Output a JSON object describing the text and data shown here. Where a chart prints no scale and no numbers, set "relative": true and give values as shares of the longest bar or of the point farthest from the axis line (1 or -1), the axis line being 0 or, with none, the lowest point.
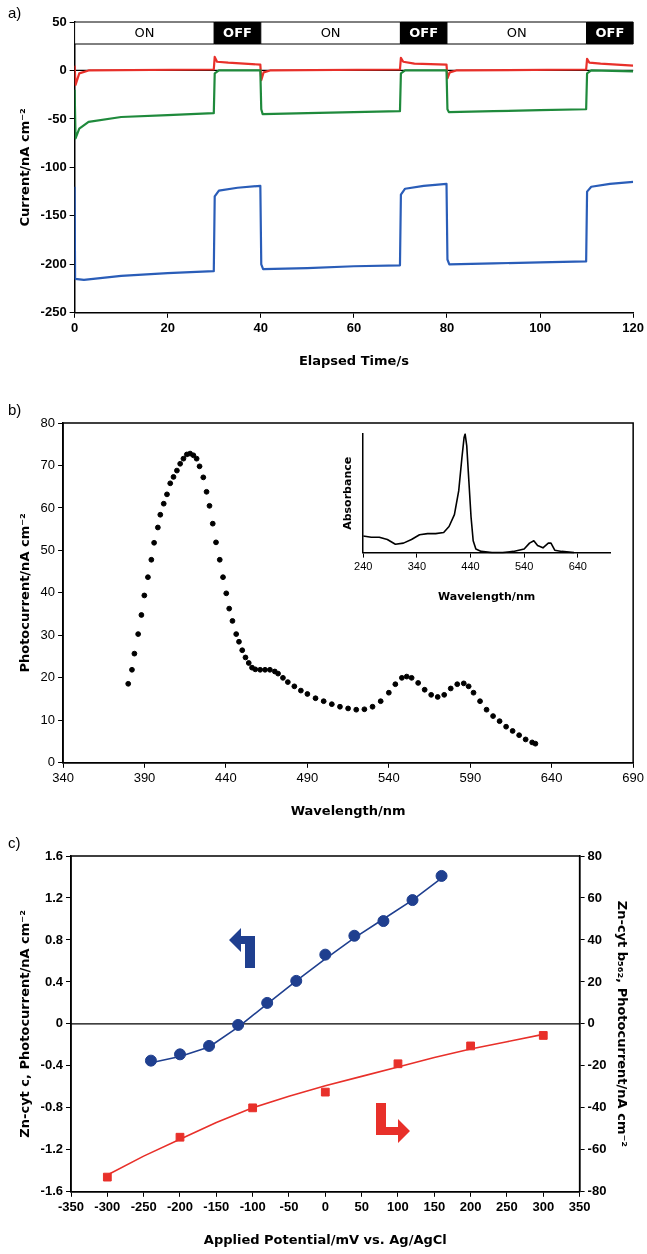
{
  "chart_data": [
    {
      "type": "line",
      "xlabel": "Elapsed Time/s",
      "ylabel": "Current/nA cm⁻²",
      "annotations": [
        "a)"
      ],
      "xlim": [
        0,
        120
      ],
      "xticks": [
        0,
        20,
        40,
        60,
        80,
        100,
        120
      ],
      "ylim": [
        -250,
        50
      ],
      "yticks": [
        -250,
        -200,
        -150,
        -100,
        -50,
        0,
        50
      ],
      "marker": "none",
      "bands": [
        {
          "axis": "x",
          "from": 0,
          "to": 30,
          "label": "ON",
          "color": "#ffffff"
        },
        {
          "axis": "x",
          "from": 30,
          "to": 40,
          "label": "OFF",
          "color": "#000000"
        },
        {
          "axis": "x",
          "from": 40,
          "to": 70,
          "label": "ON",
          "color": "#ffffff"
        },
        {
          "axis": "x",
          "from": 70,
          "to": 80,
          "label": "OFF",
          "color": "#000000"
        },
        {
          "axis": "x",
          "from": 80,
          "to": 110,
          "label": "ON",
          "color": "#ffffff"
        },
        {
          "axis": "x",
          "from": 110,
          "to": 120,
          "label": "OFF",
          "color": "#000000"
        }
      ],
      "ref_lines": [
        {
          "axis": "y",
          "value": 0,
          "color": "#000000"
        }
      ],
      "series": [
        {
          "color": "#2a5db8",
          "x": [
            0,
            0.1,
            2,
            10,
            20,
            29.9,
            30.1,
            31,
            35,
            39.9,
            40.1,
            40.5,
            50,
            60,
            69.9,
            70.1,
            71,
            75,
            79.9,
            80.1,
            80.5,
            90,
            100,
            109.9,
            110.1,
            111,
            115,
            120
          ],
          "values": [
            -120,
            -215,
            -216,
            -212,
            -209,
            -207,
            -130,
            -124,
            -121,
            -119,
            -200,
            -205,
            -204,
            -202,
            -201,
            -128,
            -122,
            -119,
            -117,
            -195,
            -200,
            -199,
            -198,
            -197,
            -125,
            -120,
            -117,
            -115
          ]
        },
        {
          "color": "#1f8a3c",
          "x": [
            0,
            0.2,
            1,
            3,
            10,
            20,
            29.9,
            30.1,
            31,
            39.9,
            40.1,
            40.4,
            50,
            60,
            69.9,
            70.1,
            71,
            79.9,
            80.1,
            80.4,
            90,
            100,
            109.9,
            110.1,
            111,
            120
          ],
          "values": [
            -20,
            -70,
            -60,
            -53,
            -48,
            -46,
            -44,
            -3,
            0,
            0,
            -40,
            -45,
            -44,
            -43,
            -42,
            -3,
            0,
            0,
            -40,
            -43,
            -42,
            -41,
            -40,
            -3,
            0,
            -1
          ]
        },
        {
          "color": "#e8302a",
          "x": [
            0,
            0.2,
            1,
            3,
            29.9,
            30.1,
            30.6,
            33,
            39.9,
            40.1,
            40.6,
            42,
            69.9,
            70.1,
            70.6,
            73,
            79.9,
            80.1,
            80.6,
            82,
            109.9,
            110.1,
            110.6,
            113,
            120
          ],
          "values": [
            5,
            -15,
            -3,
            0,
            1,
            14,
            9,
            8,
            6,
            -10,
            -2,
            0,
            1,
            13,
            9,
            7,
            6,
            -8,
            -2,
            0,
            1,
            12,
            8,
            7,
            5
          ]
        }
      ]
    },
    {
      "type": "scatter",
      "xlabel": "Wavelength/nm",
      "ylabel": "Photocurrent/nA cm⁻²",
      "annotations": [
        "b)"
      ],
      "xlim": [
        340,
        690
      ],
      "xticks": [
        340,
        390,
        440,
        490,
        540,
        590,
        640,
        690
      ],
      "ylim": [
        0,
        80
      ],
      "yticks": [
        0,
        10,
        20,
        30,
        40,
        50,
        60,
        70,
        80
      ],
      "marker": "circle",
      "x": [
        380,
        382.3,
        383.8,
        386.1,
        388.1,
        389.9,
        392.1,
        394.2,
        395.9,
        398.2,
        399.7,
        401.8,
        403.8,
        405.8,
        407.8,
        409.9,
        411.9,
        413.9,
        416,
        418,
        420,
        422,
        423.8,
        426.1,
        428.1,
        429.9,
        431.9,
        433.9,
        436.2,
        438.2,
        440.2,
        442,
        444,
        446.3,
        448,
        450,
        452,
        454,
        456,
        458,
        461,
        464,
        467,
        470,
        472,
        475,
        478,
        482,
        486,
        490,
        495,
        500,
        505,
        510,
        515,
        520,
        525,
        530,
        535,
        540,
        544,
        548,
        551,
        554,
        558,
        562,
        566,
        570,
        574,
        578,
        582,
        586,
        589,
        592,
        596,
        600,
        604,
        608,
        612,
        616,
        620,
        624,
        628,
        630
      ],
      "series": [
        {
          "color": "#000000",
          "values": [
            18.6,
            21.9,
            25.7,
            30.3,
            34.8,
            39.4,
            43.7,
            47.8,
            51.8,
            55.4,
            58.4,
            61,
            63.2,
            65.8,
            67.3,
            68.8,
            70.4,
            71.6,
            72.6,
            72.8,
            72.4,
            71.6,
            69.8,
            67.2,
            63.8,
            60.5,
            56.3,
            51.9,
            47.8,
            43.7,
            39.9,
            36.3,
            33.4,
            30.3,
            28.5,
            26.5,
            24.8,
            23.5,
            22.4,
            22,
            21.9,
            21.9,
            21.9,
            21.5,
            21,
            20,
            19,
            18,
            17,
            16.2,
            15.2,
            14.5,
            13.8,
            13.2,
            12.8,
            12.5,
            12.6,
            13.2,
            14.5,
            16.5,
            18.5,
            20,
            20.3,
            20,
            18.8,
            17.2,
            16,
            15.5,
            16,
            17.5,
            18.5,
            18.7,
            18,
            16.5,
            14.5,
            12.5,
            11,
            9.8,
            8.5,
            7.5,
            6.5,
            5.5,
            4.8,
            4.5
          ]
        }
      ]
    },
    {
      "type": "line",
      "relative": true,
      "xlabel": "Wavelength/nm",
      "ylabel": "Absorbance",
      "xlim": [
        240,
        700
      ],
      "xticks": [
        240,
        340,
        440,
        540,
        640
      ],
      "marker": "none",
      "x": [
        240,
        255,
        270,
        285,
        300,
        315,
        330,
        345,
        360,
        375,
        390,
        400,
        410,
        418,
        424,
        428,
        430,
        433,
        437,
        441,
        445,
        450,
        460,
        480,
        500,
        520,
        540,
        550,
        558,
        565,
        575,
        585,
        590,
        597,
        610,
        633
      ],
      "series": [
        {
          "color": "#000000",
          "values": [
            0.14,
            0.13,
            0.13,
            0.11,
            0.07,
            0.08,
            0.11,
            0.15,
            0.16,
            0.16,
            0.17,
            0.22,
            0.32,
            0.52,
            0.8,
            0.97,
            1,
            0.9,
            0.6,
            0.3,
            0.1,
            0.03,
            0.01,
            0,
            0,
            0.01,
            0.03,
            0.08,
            0.1,
            0.06,
            0.04,
            0.08,
            0.08,
            0.02,
            0.01,
            0
          ]
        }
      ]
    },
    {
      "type": "scatter",
      "xlabel": "Applied Potential/mV vs. Ag/AgCl",
      "ylabel": "Zn-cyt c, Photocurrent/nA cm⁻²",
      "y2label": "Zn-cyt b₅₆₂, Photocurrent/nA cm⁻²",
      "annotations": [
        "c)"
      ],
      "xlim": [
        -350,
        350
      ],
      "xticks": [
        -350,
        -300,
        -250,
        -200,
        -150,
        -100,
        -50,
        0,
        50,
        100,
        150,
        200,
        250,
        300,
        350
      ],
      "ylim": [
        -1.6,
        1.6
      ],
      "yticks": [
        -1.6,
        -1.2,
        -0.8,
        -0.4,
        0,
        0.4,
        0.8,
        1.2,
        1.6
      ],
      "y2lim": [
        -80,
        80
      ],
      "y2ticks": [
        -80,
        -60,
        -40,
        -20,
        0,
        20,
        40,
        60,
        80
      ],
      "ref_lines": [
        {
          "axis": "y",
          "value": 0,
          "color": "#000000"
        }
      ],
      "series": [
        {
          "type": "scatter",
          "marker": "circle",
          "color": "#1f3f8f",
          "x": [
            -240,
            -200,
            -160,
            -120,
            -80,
            -40,
            0,
            40,
            80,
            120,
            160
          ],
          "values": [
            -0.35,
            -0.29,
            -0.21,
            -0.01,
            0.2,
            0.41,
            0.66,
            0.84,
            0.98,
            1.18,
            1.41
          ]
        },
        {
          "type": "line",
          "marker": "none",
          "color": "#1f3f8f",
          "x": [
            -240,
            -200,
            -160,
            -120,
            -80,
            -40,
            0,
            40,
            80,
            120,
            160
          ],
          "values": [
            -0.37,
            -0.31,
            -0.22,
            -0.03,
            0.19,
            0.41,
            0.62,
            0.82,
            1.0,
            1.18,
            1.39
          ]
        },
        {
          "type": "scatter",
          "marker": "square",
          "axis": "y2",
          "color": "#e8302a",
          "x": [
            -300,
            -200,
            -100,
            0,
            100,
            200,
            300
          ],
          "values": [
            -73,
            -54,
            -40,
            -32.5,
            -19,
            -10.5,
            -5.5
          ]
        },
        {
          "type": "line",
          "marker": "none",
          "axis": "y2",
          "color": "#e8302a",
          "x": [
            -300,
            -250,
            -200,
            -150,
            -100,
            -50,
            0,
            50,
            100,
            150,
            200,
            250,
            300
          ],
          "values": [
            -72,
            -63,
            -55,
            -47,
            -40,
            -34.5,
            -29.5,
            -25,
            -20.5,
            -16,
            -12,
            -8.5,
            -5
          ]
        }
      ]
    }
  ]
}
